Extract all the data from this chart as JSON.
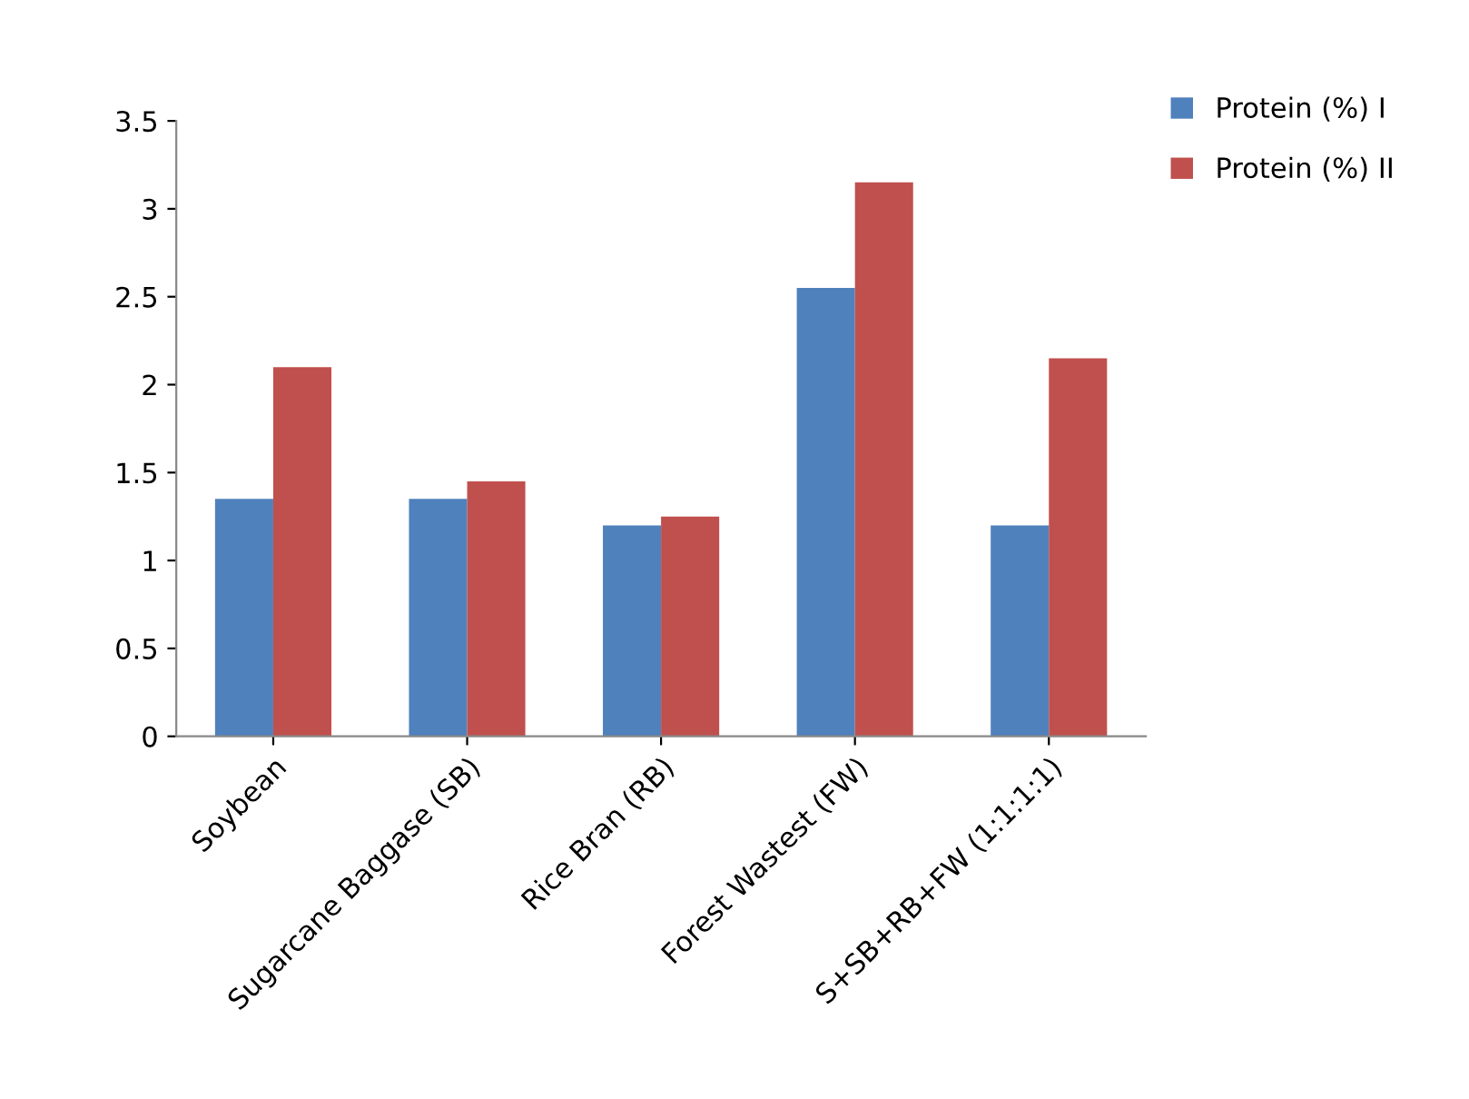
{
  "chart_data": {
    "type": "bar",
    "categories": [
      "Soybean",
      "Sugarcane Baggase (SB)",
      "Rice Bran (RB)",
      "Forest Wastest (FW)",
      "S+SB+RB+FW (1:1:1:1)"
    ],
    "series": [
      {
        "name": "Protein (%) I",
        "color": "#4f81bd",
        "values": [
          1.35,
          1.35,
          1.2,
          2.55,
          1.2
        ]
      },
      {
        "name": "Protein (%) II",
        "color": "#c0504d",
        "values": [
          2.1,
          1.45,
          1.25,
          3.15,
          2.15
        ]
      }
    ],
    "ylim": [
      0,
      3.5
    ],
    "yticks": [
      0,
      0.5,
      1,
      1.5,
      2,
      2.5,
      3,
      3.5
    ],
    "grid": false,
    "legend": "top right"
  }
}
